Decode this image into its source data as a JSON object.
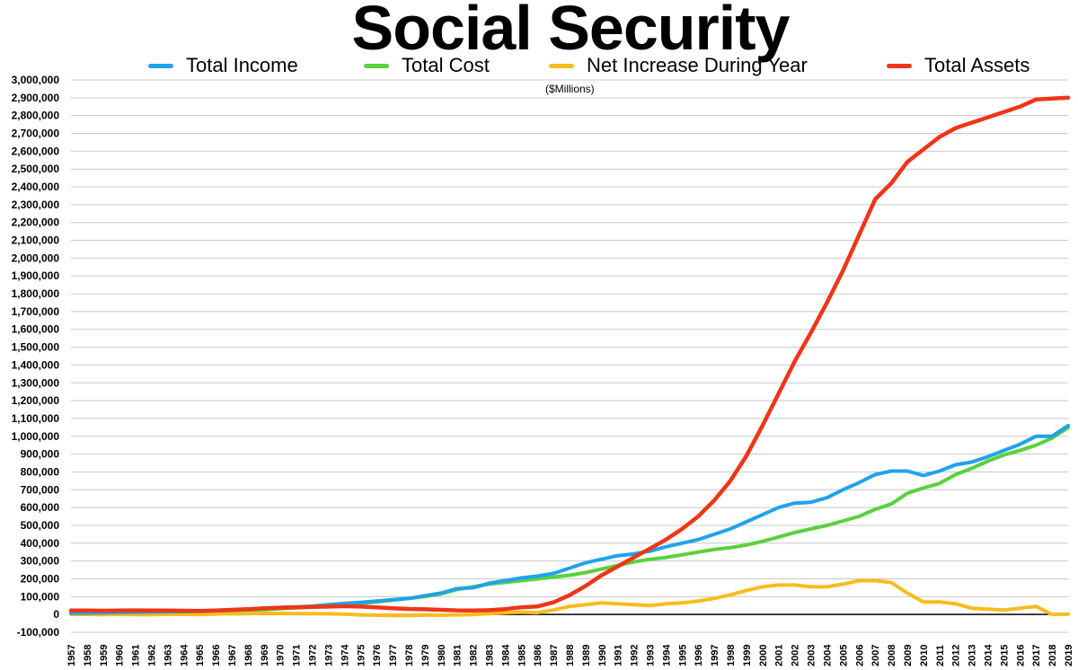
{
  "chart_data": {
    "type": "line",
    "title": "Social Security",
    "unit_note": "($Millions)",
    "xlabel": "",
    "ylabel": "",
    "ylim": [
      -100000,
      3000000
    ],
    "ytick_step": 100000,
    "ytick_labels": [
      "-100,000",
      "0",
      "100,000",
      "200,000",
      "300,000",
      "400,000",
      "500,000",
      "600,000",
      "700,000",
      "800,000",
      "900,000",
      "1,000,000",
      "1,100,000",
      "1,200,000",
      "1,300,000",
      "1,400,000",
      "1,500,000",
      "1,600,000",
      "1,700,000",
      "1,800,000",
      "1,900,000",
      "2,000,000",
      "2,100,000",
      "2,200,000",
      "2,300,000",
      "2,400,000",
      "2,500,000",
      "2,600,000",
      "2,700,000",
      "2,800,000",
      "2,900,000",
      "3,000,000"
    ],
    "grid": true,
    "legend_position": "top",
    "categories": [
      "1957",
      "1958",
      "1959",
      "1960",
      "1961",
      "1962",
      "1963",
      "1964",
      "1965",
      "1966",
      "1967",
      "1968",
      "1969",
      "1970",
      "1971",
      "1972",
      "1973",
      "1974",
      "1975",
      "1976",
      "1977",
      "1978",
      "1979",
      "1980",
      "1981",
      "1982",
      "1983",
      "1984",
      "1985",
      "1986",
      "1987",
      "1988",
      "1989",
      "1990",
      "1991",
      "1992",
      "1993",
      "1994",
      "1995",
      "1996",
      "1997",
      "1998",
      "1999",
      "2000",
      "2001",
      "2002",
      "2003",
      "2004",
      "2005",
      "2006",
      "2007",
      "2008",
      "2009",
      "2010",
      "2011",
      "2012",
      "2013",
      "2014",
      "2015",
      "2016",
      "2017",
      "2018",
      "2019"
    ],
    "series": [
      {
        "name": "Total Income",
        "color": "#1fa3ea",
        "values": [
          8000,
          9000,
          10000,
          12000,
          13000,
          14000,
          16000,
          17000,
          18000,
          23000,
          26000,
          30000,
          35000,
          39000,
          42000,
          46000,
          55000,
          62000,
          68000,
          75000,
          83000,
          90000,
          105000,
          120000,
          145000,
          150000,
          175000,
          190000,
          205000,
          215000,
          230000,
          260000,
          290000,
          310000,
          330000,
          340000,
          355000,
          380000,
          400000,
          420000,
          450000,
          480000,
          520000,
          560000,
          600000,
          625000,
          630000,
          655000,
          700000,
          740000,
          785000,
          805000,
          805000,
          780000,
          805000,
          840000,
          855000,
          885000,
          920000,
          955000,
          1000000,
          1000000,
          1060000
        ]
      },
      {
        "name": "Total Cost",
        "color": "#5ad13c",
        "values": [
          7000,
          8000,
          10000,
          11000,
          12000,
          14000,
          15000,
          16000,
          18000,
          21000,
          22000,
          25000,
          28000,
          32000,
          37000,
          41000,
          50000,
          57000,
          62000,
          70000,
          80000,
          90000,
          100000,
          115000,
          140000,
          155000,
          170000,
          180000,
          190000,
          200000,
          210000,
          220000,
          235000,
          255000,
          275000,
          295000,
          310000,
          320000,
          335000,
          350000,
          365000,
          375000,
          390000,
          410000,
          435000,
          460000,
          480000,
          500000,
          525000,
          550000,
          590000,
          620000,
          680000,
          710000,
          735000,
          785000,
          820000,
          860000,
          895000,
          920000,
          950000,
          990000,
          1050000
        ]
      },
      {
        "name": "Net Increase During Year",
        "color": "#f7bc1e",
        "values": [
          1000,
          1000,
          -1000,
          1000,
          0,
          -1000,
          1000,
          1000,
          0,
          3000,
          4000,
          5000,
          7000,
          6000,
          5000,
          5000,
          4000,
          2000,
          -2000,
          -4000,
          -6000,
          -5000,
          -3000,
          -4000,
          -2000,
          0,
          5000,
          10000,
          13000,
          10000,
          25000,
          45000,
          55000,
          65000,
          60000,
          55000,
          50000,
          60000,
          65000,
          75000,
          90000,
          110000,
          135000,
          155000,
          165000,
          165000,
          155000,
          155000,
          170000,
          190000,
          190000,
          180000,
          120000,
          70000,
          70000,
          60000,
          35000,
          30000,
          25000,
          35000,
          45000,
          0,
          2000
        ]
      },
      {
        "name": "Total Assets",
        "color": "#ef3518",
        "values": [
          22000,
          22000,
          21000,
          22000,
          23000,
          22000,
          22000,
          21000,
          20000,
          22000,
          26000,
          30000,
          34000,
          38000,
          40000,
          42000,
          44000,
          46000,
          44000,
          40000,
          35000,
          31000,
          29000,
          26000,
          23000,
          22000,
          24000,
          30000,
          40000,
          45000,
          68000,
          108000,
          160000,
          220000,
          270000,
          320000,
          370000,
          420000,
          480000,
          550000,
          640000,
          750000,
          890000,
          1060000,
          1240000,
          1420000,
          1580000,
          1750000,
          1930000,
          2130000,
          2330000,
          2420000,
          2540000,
          2610000,
          2680000,
          2730000,
          2760000,
          2790000,
          2820000,
          2850000,
          2890000,
          2895000,
          2900000
        ]
      }
    ]
  }
}
